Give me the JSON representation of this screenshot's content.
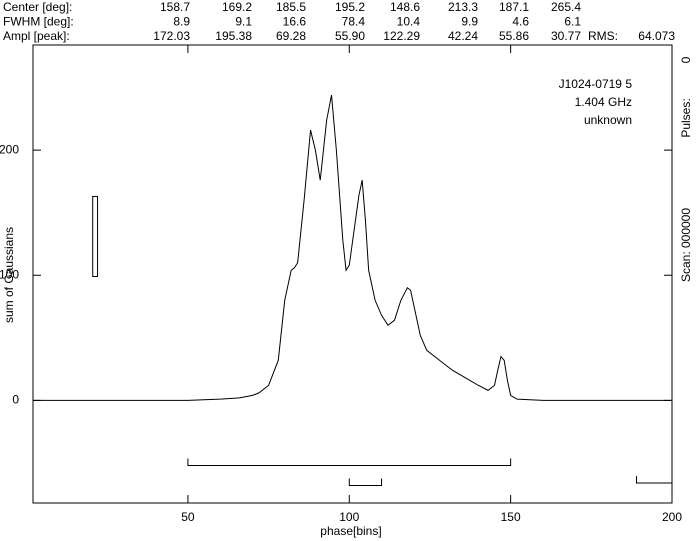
{
  "header": {
    "rows": [
      {
        "label": "Center [deg]:",
        "values": [
          "158.7",
          "169.2",
          "185.5",
          "195.2",
          "148.6",
          "213.3",
          "187.1",
          "265.4"
        ]
      },
      {
        "label": "FWHM  [deg]:",
        "values": [
          "8.9",
          "9.1",
          "16.6",
          "78.4",
          "10.4",
          "9.9",
          "4.6",
          "6.1"
        ]
      },
      {
        "label": "Ampl  [peak]:",
        "values": [
          "172.03",
          "195.38",
          "69.28",
          "55.90",
          "122.29",
          "42.24",
          "55.86",
          "30.77"
        ]
      }
    ],
    "rms_label": "RMS:",
    "rms_value": "64.073"
  },
  "chart_data": {
    "type": "line",
    "xlabel": "phase[bins]",
    "ylabel": "sum of Gaussians",
    "annotations": [
      "J1024-0719 5",
      "1.404 GHz",
      "unknown"
    ],
    "side_labels": {
      "scan": "Scan: 000000",
      "pulses": "Pulses:",
      "pulses_count": "0"
    },
    "color": "#000000",
    "x": [
      2,
      50,
      60,
      66,
      70,
      72,
      75,
      78,
      80,
      82,
      83,
      84,
      86,
      88,
      89.5,
      91,
      93,
      94.5,
      96,
      98,
      99,
      100,
      101.5,
      103,
      104,
      105,
      106,
      108,
      110,
      112,
      114,
      116,
      118,
      119,
      120,
      122,
      124,
      128,
      132,
      136,
      140,
      143,
      145,
      146,
      147,
      148,
      149,
      150,
      152,
      160,
      200
    ],
    "values": [
      0,
      0,
      1,
      2,
      4,
      6,
      12,
      32,
      80,
      104,
      106,
      110,
      160,
      216,
      200,
      176,
      224,
      244,
      200,
      128,
      104,
      108,
      136,
      164,
      176,
      144,
      104,
      80,
      68,
      60,
      64,
      80,
      90,
      88,
      76,
      52,
      40,
      32,
      24,
      18,
      12,
      8,
      12,
      24,
      35,
      32,
      16,
      4,
      1,
      0,
      0
    ],
    "ranges": [
      {
        "x": [
          50,
          150
        ],
        "y": -52
      },
      {
        "x": [
          100,
          110
        ],
        "y": -68
      },
      {
        "x": [
          189,
          200
        ],
        "y": -66
      }
    ],
    "rms_box": {
      "x": [
        20.5,
        22
      ],
      "y": [
        99,
        163
      ]
    },
    "xlim": [
      2,
      200
    ],
    "ylim": [
      -82,
      284
    ],
    "xticks": [
      50,
      100,
      150,
      200
    ],
    "yticks": [
      0,
      100,
      200
    ]
  }
}
